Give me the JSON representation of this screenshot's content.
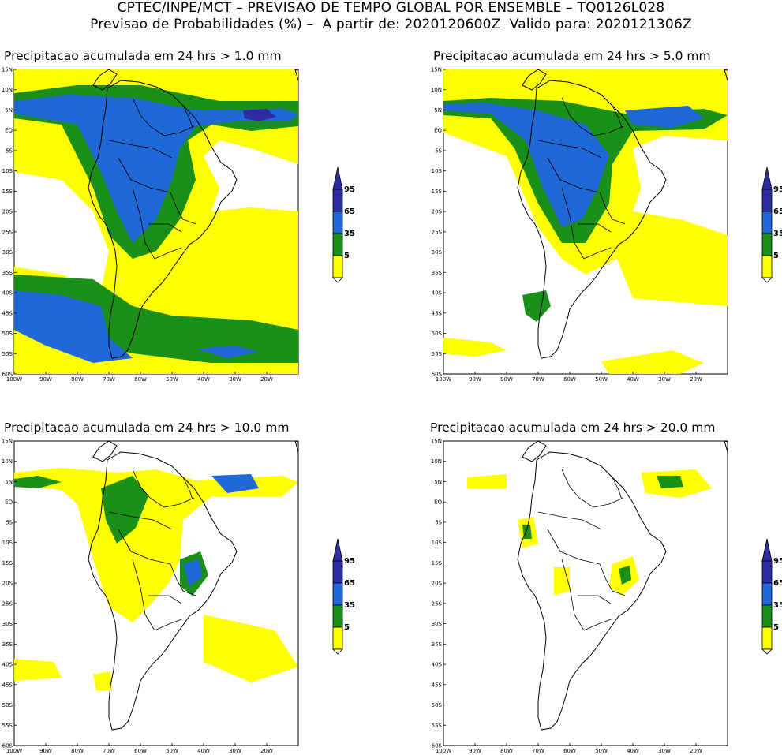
{
  "header": {
    "line1": "CPTEC/INPE/MCT – PREVISAO DE TEMPO GLOBAL POR ENSEMBLE – TQ0126L028",
    "line2": "Previsao de Probabilidades (%) –  A partir de: 2020120600Z  Valido para: 2020121306Z"
  },
  "colors": {
    "p5": "#ffff00",
    "p35": "#1a8f1a",
    "p65": "#1f68d6",
    "p95": "#2d2da0",
    "land": "#000000"
  },
  "legend": {
    "labels": [
      "95",
      "65",
      "35",
      "5"
    ]
  },
  "axes": {
    "lat_labels": [
      "15N",
      "10N",
      "5N",
      "EQ",
      "5S",
      "10S",
      "15S",
      "20S",
      "25S",
      "30S",
      "35S",
      "40S",
      "45S",
      "50S",
      "55S",
      "60S"
    ],
    "lon_labels": [
      "100W",
      "90W",
      "80W",
      "70W",
      "60W",
      "50W",
      "40W",
      "30W",
      "20W"
    ]
  },
  "panels": [
    {
      "title": "Precipitacao acumulada em 24 hrs > 1.0 mm"
    },
    {
      "title": "Precipitacao acumulada em 24 hrs > 5.0 mm"
    },
    {
      "title": "Precipitacao acumulada em 24 hrs > 10.0 mm"
    },
    {
      "title": "Precipitacao acumulada em 24 hrs > 20.0 mm"
    }
  ]
}
